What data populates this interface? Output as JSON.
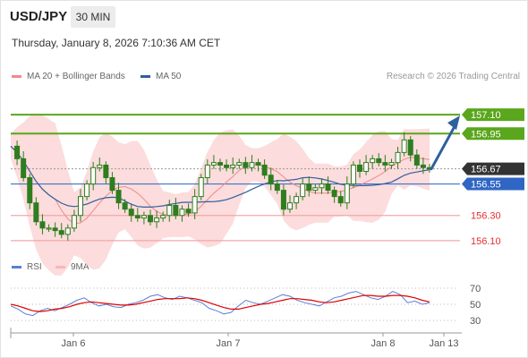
{
  "header": {
    "symbol": "USD/JPY",
    "timeframe": "30 MIN",
    "datetime": "Thursday, January 8, 2026 7:10:36 AM CET"
  },
  "legend_main": [
    {
      "label": "MA 20 + Bollinger Bands",
      "color": "#f08a8a"
    },
    {
      "label": "MA 50",
      "color": "#2f5f9e"
    }
  ],
  "credit": "Research © 2026 Trading Central",
  "legend_rsi": [
    {
      "label": "RSI",
      "color": "#5b7fd6"
    },
    {
      "label": "9MA",
      "color": "#e00000"
    }
  ],
  "colors": {
    "green": "#5aa61c",
    "blue_line": "#3f73c9",
    "red_line": "#f4a8a8",
    "candle": "#2e7d1e",
    "band_fill": "#fbd6d6",
    "ma20": "#f08a8a",
    "ma50": "#2f5f9e",
    "current_bg": "#333333",
    "level_blue_bg": "#2f66c4",
    "arrow": "#2e5f9e"
  },
  "chart_data": {
    "type": "candlestick",
    "symbol": "USD/JPY",
    "timeframe": "30 MIN",
    "ylim": [
      155.95,
      157.3
    ],
    "x_ticks": [
      "Jan 6",
      "Jan 7",
      "Jan 8",
      "Jan 13"
    ],
    "levels": [
      {
        "value": 157.1,
        "label": "157.10",
        "role": "resistance",
        "color": "#5aa61c"
      },
      {
        "value": 156.95,
        "label": "156.95",
        "role": "resistance",
        "color": "#5aa61c"
      },
      {
        "value": 156.67,
        "label": "156.67",
        "role": "current",
        "color": "#333333"
      },
      {
        "value": 156.55,
        "label": "156.55",
        "role": "pivot",
        "color": "#2f66c4"
      },
      {
        "value": 156.3,
        "label": "156.30",
        "role": "support",
        "color": "#e05050"
      },
      {
        "value": 156.1,
        "label": "156.10",
        "role": "support",
        "color": "#e05050"
      }
    ],
    "price_path": [
      156.85,
      156.75,
      156.6,
      156.4,
      156.25,
      156.2,
      156.2,
      156.18,
      156.15,
      156.2,
      156.3,
      156.45,
      156.55,
      156.68,
      156.7,
      156.6,
      156.5,
      156.4,
      156.35,
      156.3,
      156.28,
      156.3,
      156.25,
      156.28,
      156.3,
      156.38,
      156.3,
      156.35,
      156.32,
      156.45,
      156.6,
      156.7,
      156.72,
      156.7,
      156.68,
      156.7,
      156.72,
      156.68,
      156.72,
      156.7,
      156.62,
      156.55,
      156.5,
      156.35,
      156.4,
      156.45,
      156.55,
      156.5,
      156.52,
      156.55,
      156.5,
      156.45,
      156.4,
      156.55,
      156.7,
      156.65,
      156.72,
      156.75,
      156.72,
      156.7,
      156.72,
      156.8,
      156.9,
      156.78,
      156.7,
      156.68,
      156.67
    ],
    "rsi": {
      "levels": [
        70,
        50,
        30
      ],
      "rsi_values": [
        48,
        44,
        38,
        36,
        42,
        45,
        42,
        46,
        50,
        55,
        58,
        52,
        48,
        50,
        47,
        46,
        50,
        52,
        55,
        60,
        62,
        58,
        56,
        60,
        58,
        55,
        52,
        45,
        42,
        38,
        40,
        48,
        55,
        52,
        50,
        54,
        58,
        62,
        60,
        55,
        52,
        50,
        48,
        53,
        58,
        60,
        64,
        66,
        62,
        58,
        56,
        60,
        66,
        62,
        52,
        54,
        50,
        52
      ],
      "ma_values": [
        50,
        48,
        45,
        42,
        41,
        42,
        44,
        45,
        47,
        50,
        52,
        53,
        52,
        51,
        50,
        49,
        49,
        50,
        52,
        54,
        56,
        57,
        57,
        57,
        58,
        57,
        55,
        52,
        49,
        46,
        44,
        44,
        46,
        48,
        50,
        51,
        53,
        55,
        57,
        57,
        56,
        55,
        53,
        52,
        53,
        55,
        57,
        59,
        61,
        61,
        60,
        60,
        61,
        61,
        60,
        58,
        55,
        53
      ]
    }
  }
}
